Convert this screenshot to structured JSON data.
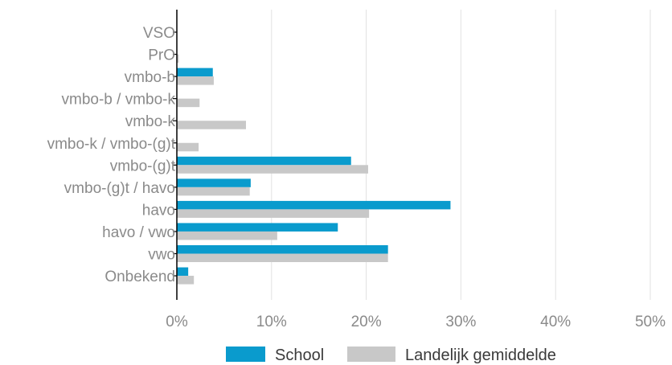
{
  "chart_data": {
    "type": "bar",
    "orientation": "horizontal",
    "categories": [
      "VSO",
      "PrO",
      "vmbo-b",
      "vmbo-b / vmbo-k",
      "vmbo-k",
      "vmbo-k / vmbo-(g)t",
      "vmbo-(g)t",
      "vmbo-(g)t / havo",
      "havo",
      "havo / vwo",
      "vwo",
      "Onbekend"
    ],
    "series": [
      {
        "name": "School",
        "color": "#0a9bcd",
        "values": [
          0,
          0,
          3.8,
          0,
          0,
          0,
          18.4,
          7.8,
          28.9,
          17.0,
          22.3,
          1.2
        ]
      },
      {
        "name": "Landelijk gemiddelde",
        "color": "#c8c8c8",
        "values": [
          0,
          0.2,
          3.9,
          2.4,
          7.3,
          2.3,
          20.2,
          7.7,
          20.3,
          10.6,
          22.3,
          1.8
        ]
      }
    ],
    "xlim": [
      0,
      50
    ],
    "xticks": [
      0,
      10,
      20,
      30,
      40,
      50
    ],
    "xtick_labels": [
      "0%",
      "10%",
      "20%",
      "30%",
      "40%",
      "50%"
    ],
    "grid": "vertical",
    "legend_position": "bottom",
    "title": "",
    "xlabel": "",
    "ylabel": ""
  }
}
